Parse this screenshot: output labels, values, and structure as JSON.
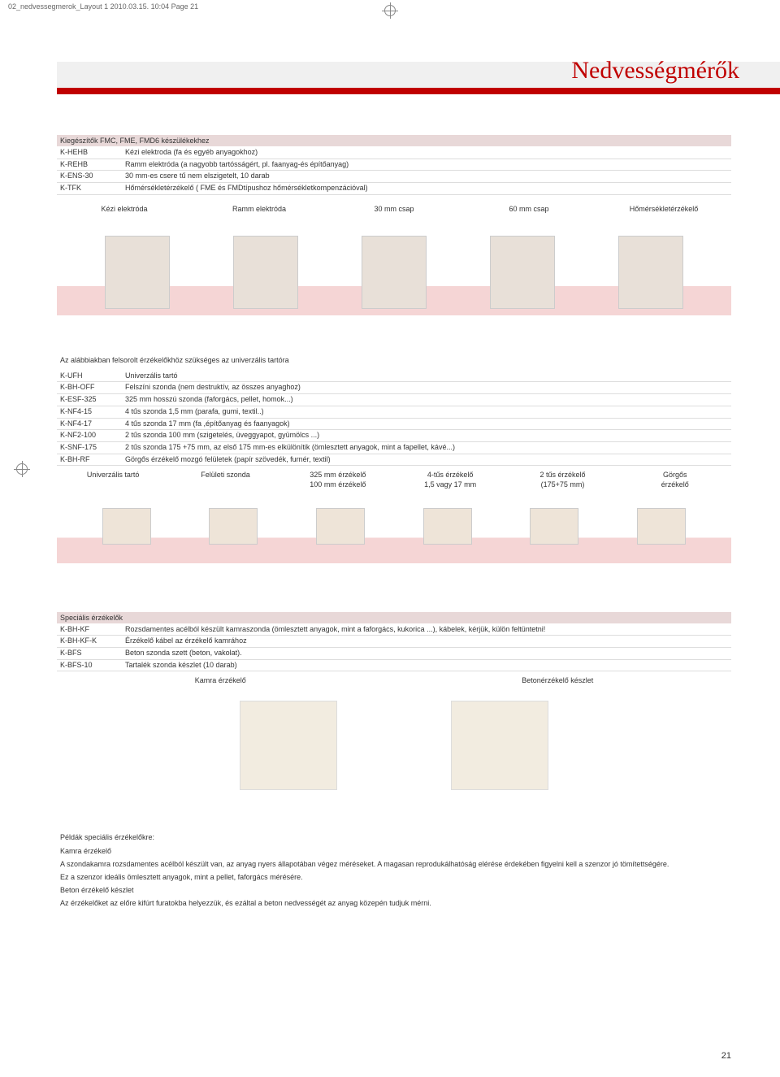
{
  "header": {
    "slugline": "02_nedvessegmerok_Layout 1  2010.03.15.  10:04  Page 21"
  },
  "title": "Nedvességmérők",
  "section1": {
    "heading": "Kiegészítők FMC, FME, FMD6 készülékekhez",
    "rows": [
      {
        "code": "K-HEHB",
        "desc": "Kézi elektroda (fa és egyéb anyagokhoz)"
      },
      {
        "code": "K-REHB",
        "desc": "Ramm elektróda (a nagyobb tartósságért, pl. faanyag-és építőanyag)"
      },
      {
        "code": "K-ENS-30",
        "desc": "30 mm-es csere tű nem elszigetelt, 10 darab"
      },
      {
        "code": "K-TFK",
        "desc": "Hőmérsékletérzékelő ( FME és FMDtípushoz hőmérsékletkompenzációval)"
      }
    ],
    "captions": [
      "Kézi elektróda",
      "Ramm elektróda",
      "30 mm csap",
      "60 mm csap",
      "Hőmérsékletérzékelő"
    ]
  },
  "section2": {
    "intro": "Az alábbiakban felsorolt érzékelőkhöz szükséges az univerzális tartóra",
    "rows": [
      {
        "code": "K-UFH",
        "desc": "Univerzális tartó"
      },
      {
        "code": "K-BH-OFF",
        "desc": "Felszíni szonda (nem destruktív, az összes anyaghoz)"
      },
      {
        "code": "K-ESF-325",
        "desc": "325 mm hosszú szonda (faforgács, pellet, homok...)"
      },
      {
        "code": "K-NF4-15",
        "desc": "4 tűs szonda 1,5 mm (parafa, gumi, textil..)"
      },
      {
        "code": "K-NF4-17",
        "desc": "4 tűs szonda 17 mm (fa ,építőanyag és faanyagok)"
      },
      {
        "code": "K-NF2-100",
        "desc": "2 tűs szonda 100 mm (szigetelés, üveggyapot, gyümölcs ...)"
      },
      {
        "code": "K-SNF-175",
        "desc": "2 tűs szonda 175 +75 mm, az első 175 mm-es elkülönítik (ömlesztett anyagok, mint a fapellet, kávé...)"
      },
      {
        "code": "K-BH-RF",
        "desc": "Görgős érzékelő mozgó felületek (papír szövedék, furnér, textil)"
      }
    ],
    "captions": [
      {
        "l1": "Univerzális tartó",
        "l2": ""
      },
      {
        "l1": "Felületi szonda",
        "l2": ""
      },
      {
        "l1": "325 mm érzékelő",
        "l2": "100 mm érzékelő"
      },
      {
        "l1": "4-tűs érzékelő",
        "l2": "1,5 vagy 17 mm"
      },
      {
        "l1": "2 tűs érzékelő",
        "l2": "(175+75 mm)"
      },
      {
        "l1": "Görgős",
        "l2": "érzékelő"
      }
    ]
  },
  "section3": {
    "heading": "Speciális érzékelők",
    "rows": [
      {
        "code": "K-BH-KF",
        "desc": "Rozsdamentes acélból készült kamraszonda (ömlesztett anyagok, mint a faforgács, kukorica ...), kábelek, kérjük, külön feltüntetni!"
      },
      {
        "code": "K-BH-KF-K",
        "desc": "Érzékelő kábel az érzékelő kamrához"
      },
      {
        "code": "K-BFS",
        "desc": "Beton szonda szett (beton, vakolat)."
      },
      {
        "code": "K-BFS-10",
        "desc": "Tartalék szonda készlet (10 darab)"
      }
    ],
    "captions": [
      "Kamra érzékelő",
      "Betonérzékelő készlet"
    ]
  },
  "examples": {
    "heading": "Példák speciális érzékelőkre:",
    "sub1": "Kamra érzékelő",
    "p1": "A szondakamra rozsdamentes acélból készült van, az anyag nyers állapotában végez méréseket. A magasan reprodukálhatóság elérése érdekében figyelni kell a szenzor jó tömítettségére.",
    "p2": "Ez a szenzor ideális ömlesztett anyagok, mint a pellet, faforgács mérésére.",
    "sub2": "Beton érzékelő készlet",
    "p3": "Az érzékelőket az előre kifúrt furatokba helyezzük, és ezáltal a beton nedvességét az anyag közepén tudjuk mérni."
  },
  "page_number": "21",
  "colors": {
    "red": "#c00000",
    "pink_band": "#f5d5d5",
    "section_bg": "#e8d8d8"
  }
}
